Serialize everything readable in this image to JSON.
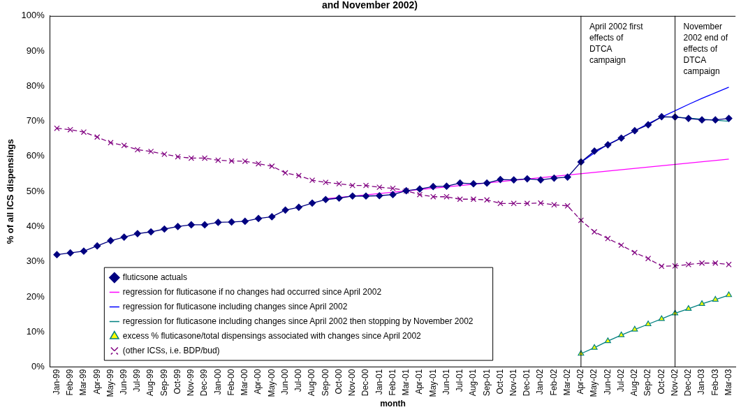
{
  "chart_data": {
    "type": "line",
    "title": "and November 2002)",
    "xlabel": "month",
    "ylabel": "% of all ICS dispensings",
    "categories": [
      "Jan-99",
      "Feb-99",
      "Mar-99",
      "Apr-99",
      "May-99",
      "Jun-99",
      "Jul-99",
      "Aug-99",
      "Sep-99",
      "Oct-99",
      "Nov-99",
      "Dec-99",
      "Jan-00",
      "Feb-00",
      "Mar-00",
      "Apr-00",
      "May-00",
      "Jun-00",
      "Jul-00",
      "Aug-00",
      "Sep-00",
      "Oct-00",
      "Nov-00",
      "Dec-00",
      "Jan-01",
      "Feb-01",
      "Mar-01",
      "Apr-01",
      "May-01",
      "Jun-01",
      "Jul-01",
      "Aug-01",
      "Sep-01",
      "Oct-01",
      "Nov-01",
      "Dec-01",
      "Jan-02",
      "Feb-02",
      "Mar-02",
      "Apr-02",
      "May-02",
      "Jun-02",
      "Jul-02",
      "Aug-02",
      "Sep-02",
      "Oct-02",
      "Nov-02",
      "Dec-02",
      "Jan-03",
      "Feb-03",
      "Mar-03"
    ],
    "series": [
      {
        "name": "fluticsone actuals",
        "color": "#000080",
        "marker": "diamond",
        "line_style": "solid",
        "values": [
          32,
          32.5,
          33,
          34.5,
          36,
          37,
          38,
          38.5,
          39.3,
          40,
          40.5,
          40.5,
          41.2,
          41.3,
          41.5,
          42.3,
          42.8,
          44.7,
          45.5,
          46.7,
          47.7,
          48.1,
          48.7,
          48.7,
          48.8,
          49.1,
          50.2,
          50.7,
          51.4,
          51.5,
          52.4,
          52.2,
          52.4,
          53.4,
          53.3,
          53.6,
          53.3,
          53.8,
          54.1,
          58.4,
          61.5,
          63.3,
          65.2,
          67.3,
          69,
          71.3,
          71.2,
          70.8,
          70.4,
          70.4,
          70.8
        ]
      },
      {
        "name": "regression for fluticasone if no changes had occurred since April 2002",
        "color": "#ff00ff",
        "marker": "none",
        "line_style": "solid",
        "values": [
          null,
          null,
          null,
          null,
          null,
          null,
          null,
          null,
          null,
          null,
          null,
          null,
          null,
          null,
          null,
          null,
          null,
          null,
          null,
          null,
          47.9,
          null,
          null,
          null,
          null,
          null,
          null,
          null,
          null,
          null,
          null,
          null,
          null,
          null,
          null,
          null,
          null,
          null,
          null,
          null,
          null,
          null,
          null,
          null,
          null,
          null,
          null,
          null,
          null,
          null,
          59.2
        ]
      },
      {
        "name": "regression for fluticasone including changes since April 2002",
        "color": "#0000ff",
        "marker": "none",
        "line_style": "solid",
        "values": [
          null,
          null,
          null,
          null,
          null,
          null,
          null,
          null,
          null,
          null,
          null,
          null,
          null,
          null,
          null,
          null,
          null,
          null,
          null,
          null,
          null,
          null,
          null,
          null,
          null,
          null,
          null,
          null,
          null,
          null,
          null,
          null,
          null,
          null,
          null,
          null,
          null,
          null,
          null,
          58.3,
          61,
          63.4,
          65.3,
          67.3,
          69.3,
          71.2,
          73,
          74.8,
          76.5,
          78.1,
          79.7
        ]
      },
      {
        "name": "regression for fluticasone including changes since April 2002 then stopping by November 2002",
        "color": "#008080",
        "marker": "none",
        "line_style": "solid",
        "values": [
          null,
          null,
          null,
          null,
          null,
          null,
          null,
          null,
          null,
          null,
          null,
          null,
          null,
          null,
          null,
          null,
          null,
          null,
          null,
          null,
          null,
          null,
          null,
          null,
          null,
          null,
          null,
          null,
          null,
          null,
          null,
          null,
          null,
          null,
          null,
          null,
          null,
          null,
          null,
          null,
          null,
          null,
          null,
          null,
          null,
          71.2,
          71.2,
          70.9,
          70.6,
          70.3,
          70
        ]
      },
      {
        "name": "excess % fluticasone/total dispensings associated with changes since April 2002",
        "color": "#008080",
        "marker": "triangle",
        "line_style": "solid",
        "values": [
          null,
          null,
          null,
          null,
          null,
          null,
          null,
          null,
          null,
          null,
          null,
          null,
          null,
          null,
          null,
          null,
          null,
          null,
          null,
          null,
          null,
          null,
          null,
          null,
          null,
          null,
          null,
          null,
          null,
          null,
          null,
          null,
          null,
          null,
          null,
          null,
          null,
          null,
          null,
          3.8,
          5.5,
          7.4,
          9.1,
          10.7,
          12.2,
          13.7,
          15.3,
          16.6,
          18,
          19.2,
          20.5
        ]
      },
      {
        "name": "(other ICSs, i.e. BDP/bud)",
        "color": "#800080",
        "marker": "cross",
        "line_style": "dashed",
        "values": [
          68,
          67.6,
          66.9,
          65.5,
          63.9,
          63.1,
          61.9,
          61.4,
          60.6,
          59.9,
          59.5,
          59.5,
          58.9,
          58.7,
          58.6,
          57.9,
          57.2,
          55.3,
          54.5,
          53.2,
          52.6,
          52.2,
          51.7,
          51.7,
          51.2,
          50.9,
          50.2,
          49.1,
          48.5,
          48.5,
          47.8,
          47.8,
          47.6,
          46.6,
          46.6,
          46.6,
          46.7,
          46.2,
          45.9,
          41.8,
          38.5,
          36.6,
          34.7,
          32.6,
          30.9,
          28.7,
          28.8,
          29.2,
          29.6,
          29.6,
          29.2
        ]
      }
    ],
    "ylim": [
      0,
      100
    ],
    "yticks": [
      {
        "value": 0,
        "label": "0%"
      },
      {
        "value": 10,
        "label": "10%"
      },
      {
        "value": 20,
        "label": "20%"
      },
      {
        "value": 30,
        "label": "30%"
      },
      {
        "value": 40,
        "label": "40%"
      },
      {
        "value": 50,
        "label": "50%"
      },
      {
        "value": 60,
        "label": "60%"
      },
      {
        "value": 70,
        "label": "70%"
      },
      {
        "value": 80,
        "label": "80%"
      },
      {
        "value": 90,
        "label": "90%"
      },
      {
        "value": 100,
        "label": "100%"
      }
    ],
    "ref_lines": [
      {
        "axis": "x",
        "value": "Apr-02",
        "label": "April 2002 first effects of DTCA campaign",
        "color": "#000000"
      },
      {
        "axis": "x",
        "value": "Nov-02",
        "label": "November 2002 end of effects of DTCA campaign",
        "color": "#000000"
      }
    ],
    "grid": false,
    "legend": "bottom"
  }
}
